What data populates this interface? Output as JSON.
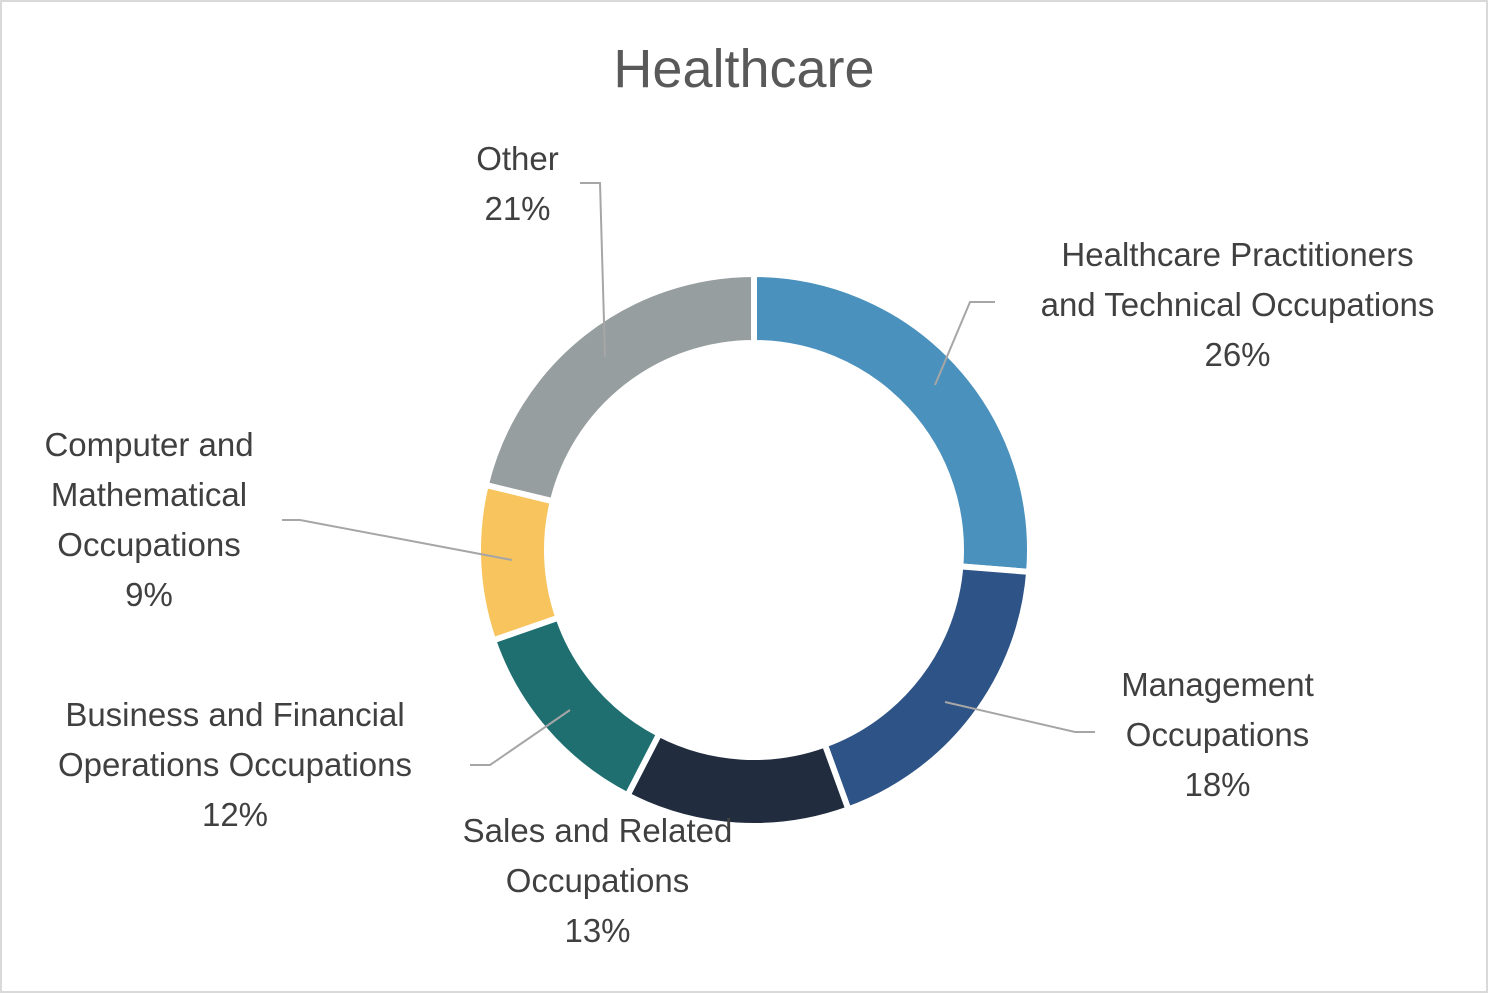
{
  "chart_data": {
    "type": "pie",
    "subtype": "doughnut",
    "title": "Healthcare",
    "categories": [
      "Healthcare Practitioners and Technical Occupations",
      "Management Occupations",
      "Sales and Related Occupations",
      "Business and Financial Operations Occupations",
      "Computer and Mathematical Occupations",
      "Other"
    ],
    "values": [
      26,
      18,
      13,
      12,
      9,
      21
    ],
    "unit": "%",
    "colors": [
      "#4a91bd",
      "#2e5386",
      "#212d3f",
      "#1f6f71",
      "#f8c45d",
      "#979e9f"
    ],
    "legend": "none",
    "data_labels": "category name and percentage with leader lines"
  },
  "labels": [
    {
      "line1": "Healthcare Practitioners",
      "line2": "and Technical Occupations",
      "pct": "26%"
    },
    {
      "line1": "Management",
      "line2": "Occupations",
      "pct": "18%"
    },
    {
      "line1": "Sales and Related",
      "line2": "Occupations",
      "pct": "13%"
    },
    {
      "line1": "Business and Financial",
      "line2": "Operations Occupations",
      "pct": "12%"
    },
    {
      "line1": "Computer and",
      "line2": "Mathematical",
      "line3": "Occupations",
      "pct": "9%"
    },
    {
      "line1": "Other",
      "pct": "21%"
    }
  ]
}
